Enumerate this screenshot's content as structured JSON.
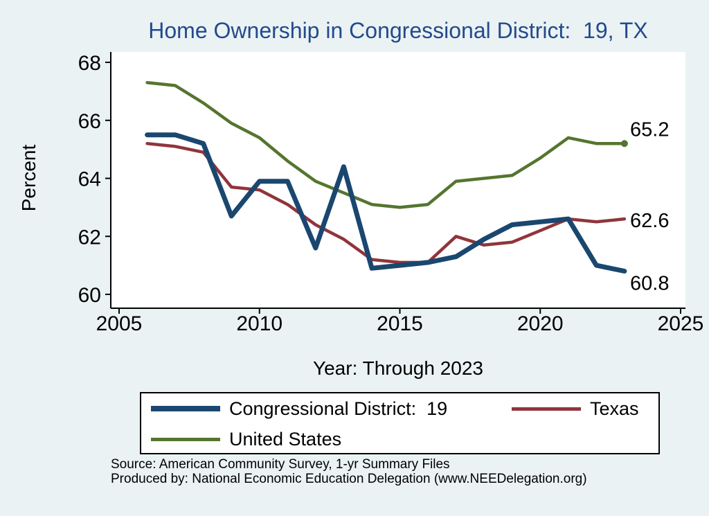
{
  "chart_data": {
    "type": "line",
    "title": "Home Ownership in Congressional District:  19, TX",
    "xlabel": "Year: Through 2023",
    "ylabel": "Percent",
    "xlim": [
      2005,
      2025
    ],
    "ylim": [
      59.5,
      68.4
    ],
    "x_ticks": [
      "2005",
      "2010",
      "2015",
      "2020",
      "2025"
    ],
    "y_ticks": [
      "60",
      "62",
      "64",
      "66",
      "68"
    ],
    "grid": false,
    "legend_position": "bottom",
    "x": [
      2006,
      2007,
      2008,
      2009,
      2010,
      2011,
      2012,
      2013,
      2014,
      2015,
      2016,
      2017,
      2018,
      2019,
      2020,
      2021,
      2022,
      2023
    ],
    "series": [
      {
        "name": "Congressional District:  19",
        "color": "#1a476f",
        "values": [
          65.5,
          65.5,
          65.2,
          62.7,
          63.9,
          63.9,
          61.6,
          64.4,
          60.9,
          61.0,
          61.1,
          61.3,
          61.9,
          62.4,
          62.5,
          62.6,
          61.0,
          60.8
        ],
        "end_label": "60.8"
      },
      {
        "name": "Texas",
        "color": "#90353b",
        "values": [
          65.2,
          65.1,
          64.9,
          63.7,
          63.6,
          63.1,
          62.4,
          61.9,
          61.2,
          61.1,
          61.1,
          62.0,
          61.7,
          61.8,
          62.2,
          62.6,
          62.5,
          62.6
        ],
        "end_label": "62.6"
      },
      {
        "name": "United States",
        "color": "#55752f",
        "values": [
          67.3,
          67.2,
          66.6,
          65.9,
          65.4,
          64.6,
          63.9,
          63.5,
          63.1,
          63.0,
          63.1,
          63.9,
          64.0,
          64.1,
          64.7,
          65.4,
          65.2,
          65.2
        ],
        "end_label": "65.2"
      }
    ]
  },
  "footer": {
    "source": "Source: American Community Survey, 1-yr Summary Files",
    "produced_by": "Produced by: National Economic Education Delegation (www.NEEDelegation.org)"
  },
  "colors": {
    "background": "#eaf2f3",
    "plot_background": "#ffffff",
    "title": "#234a8c",
    "axis": "#000000",
    "legend_background": "#ffffff",
    "legend_border": "#000000"
  }
}
